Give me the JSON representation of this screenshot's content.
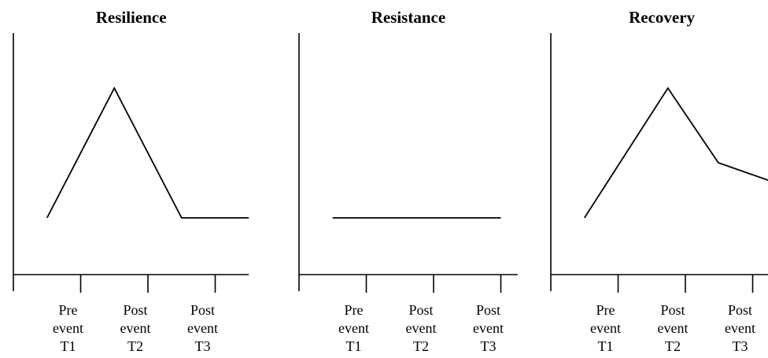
{
  "chart_data": [
    {
      "type": "line",
      "title": "Resilience",
      "x": [
        0.5,
        1.5,
        2.5,
        3.5
      ],
      "series": [
        {
          "name": "Resilience",
          "color": "#000000",
          "values": [
            2.35,
            7.72,
            2.35,
            2.35
          ]
        }
      ],
      "xlim": [
        0,
        3.5
      ],
      "ylim": [
        0,
        10
      ],
      "xticks": [
        {
          "value": 1,
          "label": "Pre event T1"
        },
        {
          "value": 2,
          "label": "Post event T2"
        },
        {
          "value": 3,
          "label": "Post event T3"
        }
      ]
    },
    {
      "type": "line",
      "title": "Resistance",
      "x": [
        0.5,
        3
      ],
      "series": [
        {
          "name": "Resistance",
          "color": "#000000",
          "values": [
            2.35,
            2.35
          ]
        }
      ],
      "xlim": [
        0,
        3.25
      ],
      "ylim": [
        0,
        10
      ],
      "xticks": [
        {
          "value": 1,
          "label": "Pre event T1"
        },
        {
          "value": 2,
          "label": "Post event T2"
        },
        {
          "value": 3,
          "label": "Post event T3"
        }
      ]
    },
    {
      "type": "line",
      "title": "Recovery",
      "x": [
        0.5,
        1.74,
        2.49,
        3.23
      ],
      "series": [
        {
          "name": "Recovery",
          "color": "#000000",
          "values": [
            2.35,
            7.72,
            4.63,
            3.91
          ]
        }
      ],
      "xlim": [
        0,
        3.3
      ],
      "ylim": [
        0,
        10
      ],
      "xticks": [
        {
          "value": 1,
          "label": "Pre event T1"
        },
        {
          "value": 2,
          "label": "Post event T2"
        },
        {
          "value": 3,
          "label": "Post event T3"
        }
      ]
    }
  ]
}
